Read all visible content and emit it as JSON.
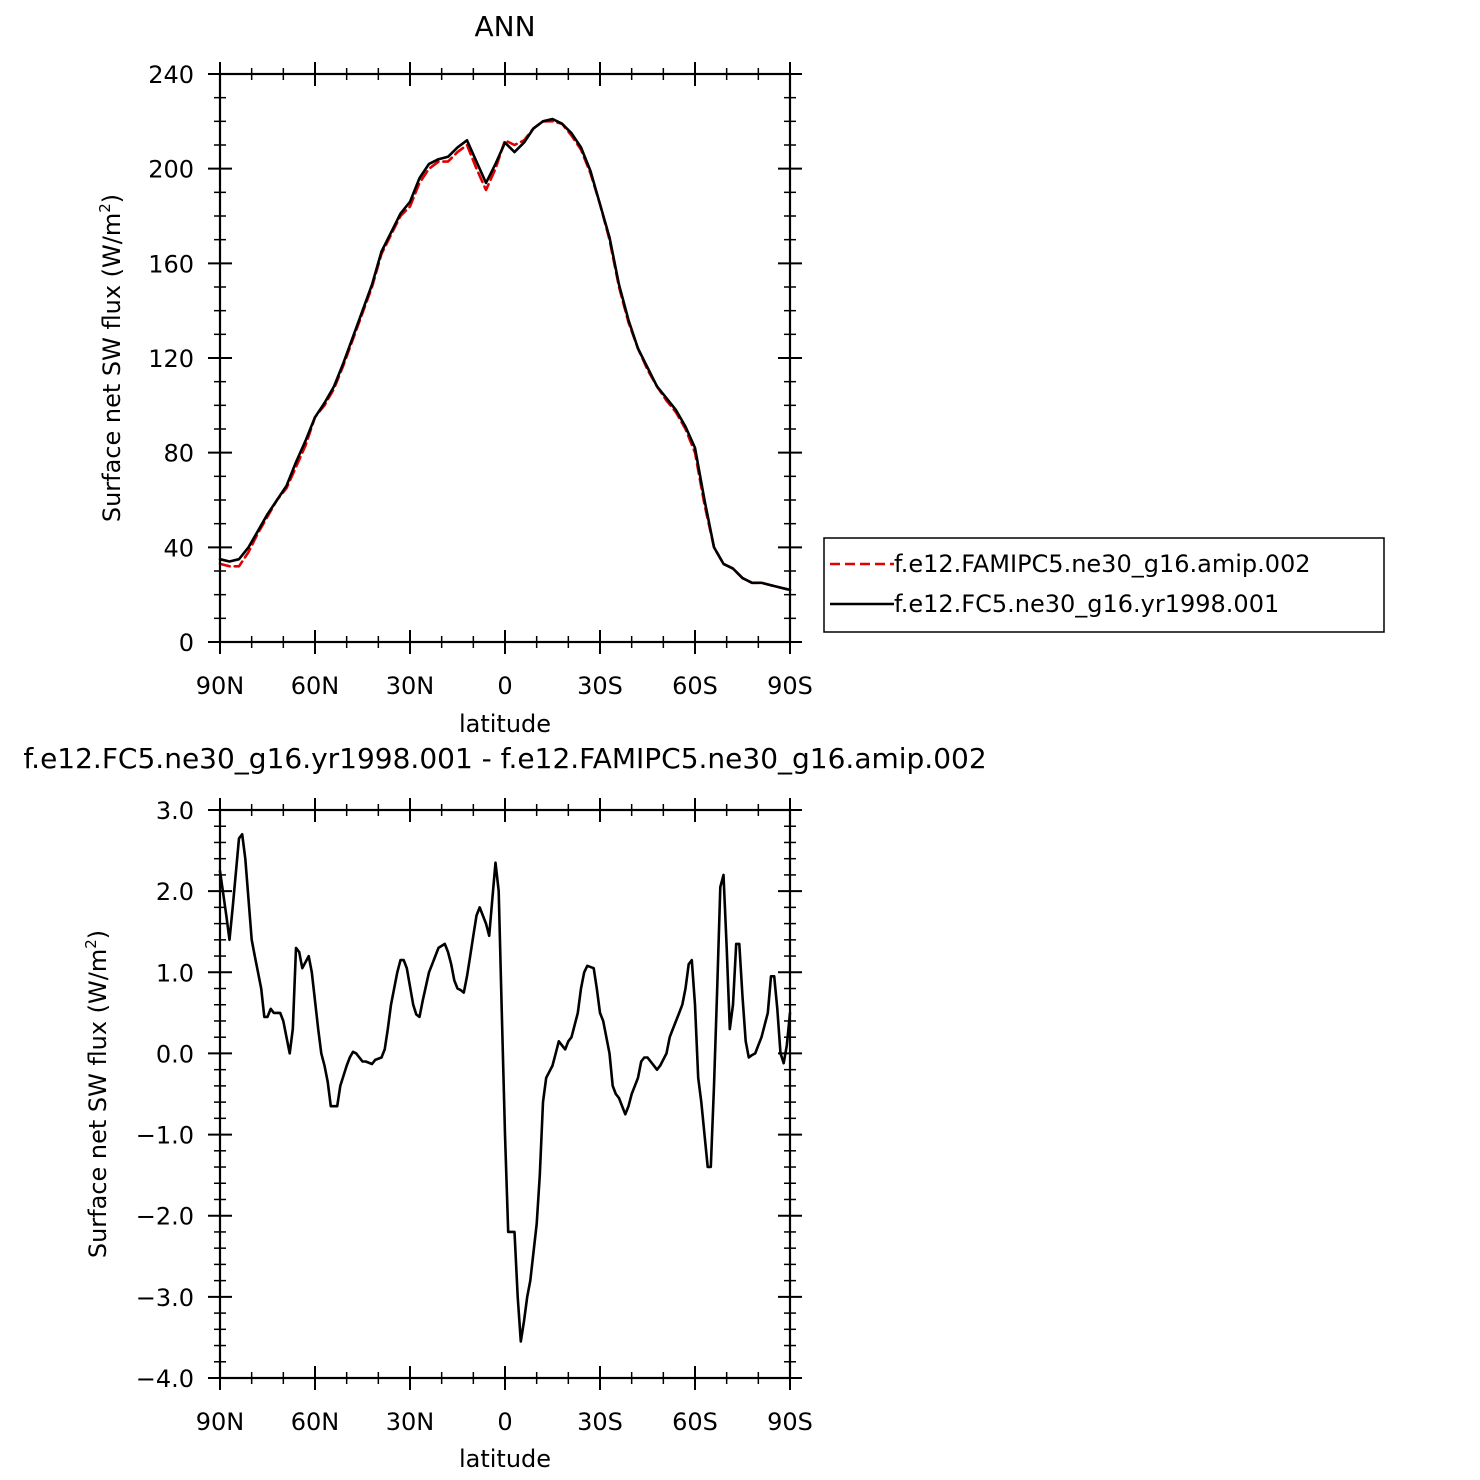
{
  "chart_data": [
    {
      "type": "line",
      "title": "ANN",
      "xlabel": "latitude",
      "ylabel": "Surface net SW flux (W/m",
      "ylabel_sup": "2",
      "ylabel_close": ")",
      "xlim": [
        90,
        -90
      ],
      "ylim": [
        0,
        240
      ],
      "xticks": [
        90,
        60,
        30,
        0,
        -30,
        -60,
        -90
      ],
      "xtick_labels": [
        "90N",
        "60N",
        "30N",
        "0",
        "30S",
        "60S",
        "90S"
      ],
      "yticks": [
        0,
        40,
        80,
        120,
        160,
        200,
        240
      ],
      "ytick_labels": [
        "0",
        "40",
        "80",
        "120",
        "160",
        "200",
        "240"
      ],
      "legend_position": "right",
      "series": [
        {
          "name": "f.e12.FAMIPC5.ne30_g16.amip.002",
          "color": "#e00000",
          "style": "dashed",
          "x": [
            90,
            87,
            84,
            81,
            78,
            75,
            72,
            69,
            66,
            63,
            60,
            57,
            54,
            51,
            48,
            45,
            42,
            39,
            36,
            33,
            30,
            27,
            24,
            21,
            18,
            15,
            12,
            9,
            6,
            3,
            0,
            -3,
            -6,
            -9,
            -12,
            -15,
            -18,
            -21,
            -24,
            -27,
            -30,
            -33,
            -36,
            -39,
            -42,
            -45,
            -48,
            -51,
            -54,
            -57,
            -60,
            -63,
            -66,
            -69,
            -72,
            -75,
            -78,
            -81,
            -84,
            -87,
            -90
          ],
          "y": [
            33,
            32,
            32,
            38,
            46,
            53,
            60,
            65,
            74,
            83,
            95,
            100,
            107,
            117,
            128,
            139,
            150,
            164,
            172,
            180,
            184,
            194,
            200,
            203,
            203,
            207,
            210,
            200,
            191,
            200,
            212,
            210,
            212,
            217,
            220,
            220,
            219,
            214,
            208,
            198,
            185,
            170,
            150,
            135,
            124,
            115,
            108,
            102,
            97,
            90,
            80,
            58,
            40,
            33,
            31,
            27,
            25,
            25,
            24,
            23,
            22
          ]
        },
        {
          "name": "f.e12.FC5.ne30_g16.yr1998.001",
          "color": "#000000",
          "style": "solid",
          "x": [
            90,
            87,
            84,
            81,
            78,
            75,
            72,
            69,
            66,
            63,
            60,
            57,
            54,
            51,
            48,
            45,
            42,
            39,
            36,
            33,
            30,
            27,
            24,
            21,
            18,
            15,
            12,
            9,
            6,
            3,
            0,
            -3,
            -6,
            -9,
            -12,
            -15,
            -18,
            -21,
            -24,
            -27,
            -30,
            -33,
            -36,
            -39,
            -42,
            -45,
            -48,
            -51,
            -54,
            -57,
            -60,
            -63,
            -66,
            -69,
            -72,
            -75,
            -78,
            -81,
            -84,
            -87,
            -90
          ],
          "y": [
            35,
            34,
            35,
            40,
            47,
            54,
            60,
            66,
            76,
            85,
            95,
            101,
            108,
            118,
            129,
            140,
            151,
            165,
            173,
            181,
            186,
            196,
            202,
            204,
            205,
            209,
            212,
            203,
            194,
            202,
            211,
            207,
            211,
            217,
            220,
            221,
            219,
            215,
            209,
            199,
            185,
            171,
            151,
            136,
            124,
            116,
            108,
            103,
            98,
            91,
            82,
            60,
            40,
            33,
            31,
            27,
            25,
            25,
            24,
            23,
            22
          ]
        }
      ]
    },
    {
      "type": "line",
      "title": "f.e12.FC5.ne30_g16.yr1998.001 - f.e12.FAMIPC5.ne30_g16.amip.002",
      "xlabel": "latitude",
      "ylabel": "Surface net SW flux (W/m",
      "ylabel_sup": "2",
      "ylabel_close": ")",
      "xlim": [
        90,
        -90
      ],
      "ylim": [
        -4.0,
        3.0
      ],
      "xticks": [
        90,
        60,
        30,
        0,
        -30,
        -60,
        -90
      ],
      "xtick_labels": [
        "90N",
        "60N",
        "30N",
        "0",
        "30S",
        "60S",
        "90S"
      ],
      "yticks": [
        -4.0,
        -3.0,
        -2.0,
        -1.0,
        0.0,
        1.0,
        2.0,
        3.0
      ],
      "ytick_labels": [
        "−4.0",
        "−3.0",
        "−2.0",
        "−1.0",
        "0.0",
        "1.0",
        "2.0",
        "3.0"
      ],
      "series": [
        {
          "color": "#000000",
          "style": "solid",
          "x": [
            90,
            88,
            87,
            86,
            84,
            83,
            82,
            80,
            79,
            78,
            77,
            76,
            75,
            74,
            73,
            71,
            70,
            69,
            68,
            67,
            66,
            65,
            64,
            62,
            61,
            59,
            58,
            57,
            56,
            55,
            53,
            52,
            50,
            49,
            48,
            47,
            45,
            44,
            42,
            41,
            39,
            38,
            37,
            36,
            34,
            33,
            32,
            31,
            29,
            28,
            27,
            26,
            24,
            23,
            22,
            21,
            19,
            18,
            17,
            16,
            15,
            14,
            13,
            12,
            11,
            10,
            9,
            8,
            6,
            5,
            4,
            3,
            2,
            1,
            0,
            -1,
            -2,
            -3,
            -4,
            -5,
            -6,
            -7,
            -8,
            -10,
            -11,
            -12,
            -13,
            -15,
            -16,
            -17,
            -19,
            -20,
            -21,
            -23,
            -24,
            -25,
            -26,
            -28,
            -29,
            -30,
            -31,
            -33,
            -34,
            -35,
            -36,
            -38,
            -39,
            -40,
            -42,
            -43,
            -44,
            -45,
            -47,
            -48,
            -49,
            -51,
            -52,
            -53,
            -54,
            -55,
            -56,
            -57,
            -58,
            -59,
            -60,
            -61,
            -62,
            -63,
            -64,
            -65,
            -66,
            -67,
            -68,
            -69,
            -70,
            -71,
            -72,
            -73,
            -74,
            -75,
            -76,
            -77,
            -78,
            -79,
            -80,
            -81,
            -83,
            -84,
            -85,
            -86,
            -87,
            -88,
            -89,
            -90
          ],
          "y": [
            2.25,
            1.7,
            1.4,
            1.8,
            2.65,
            2.7,
            2.4,
            1.4,
            1.2,
            1.0,
            0.8,
            0.45,
            0.45,
            0.55,
            0.5,
            0.5,
            0.4,
            0.2,
            0.0,
            0.3,
            1.3,
            1.25,
            1.05,
            1.2,
            1.0,
            0.3,
            0.0,
            -0.15,
            -0.35,
            -0.65,
            -0.65,
            -0.4,
            -0.15,
            -0.05,
            0.02,
            0.0,
            -0.1,
            -0.1,
            -0.13,
            -0.08,
            -0.05,
            0.05,
            0.3,
            0.6,
            1.0,
            1.15,
            1.15,
            1.05,
            0.6,
            0.48,
            0.45,
            0.65,
            1.0,
            1.1,
            1.2,
            1.3,
            1.35,
            1.25,
            1.1,
            0.9,
            0.8,
            0.78,
            0.75,
            0.95,
            1.2,
            1.45,
            1.7,
            1.8,
            1.6,
            1.45,
            1.9,
            2.35,
            2.0,
            0.5,
            -1.0,
            -2.2,
            -2.2,
            -2.2,
            -3.0,
            -3.55,
            -3.3,
            -3.0,
            -2.8,
            -2.1,
            -1.5,
            -0.6,
            -0.3,
            -0.15,
            0.0,
            0.15,
            0.05,
            0.15,
            0.2,
            0.5,
            0.8,
            1.0,
            1.08,
            1.05,
            0.8,
            0.5,
            0.4,
            0.0,
            -0.4,
            -0.5,
            -0.55,
            -0.75,
            -0.65,
            -0.5,
            -0.3,
            -0.1,
            -0.05,
            -0.05,
            -0.15,
            -0.2,
            -0.15,
            0.0,
            0.2,
            0.3,
            0.4,
            0.5,
            0.6,
            0.8,
            1.1,
            1.15,
            0.6,
            -0.3,
            -0.6,
            -1.0,
            -1.4,
            -1.4,
            -0.4,
            0.8,
            2.05,
            2.2,
            1.3,
            0.3,
            0.6,
            1.35,
            1.35,
            0.7,
            0.15,
            -0.05,
            -0.02,
            0.0,
            0.1,
            0.2,
            0.5,
            0.95,
            0.95,
            0.55,
            0.0,
            -0.12,
            0.1,
            0.5
          ]
        }
      ]
    }
  ]
}
